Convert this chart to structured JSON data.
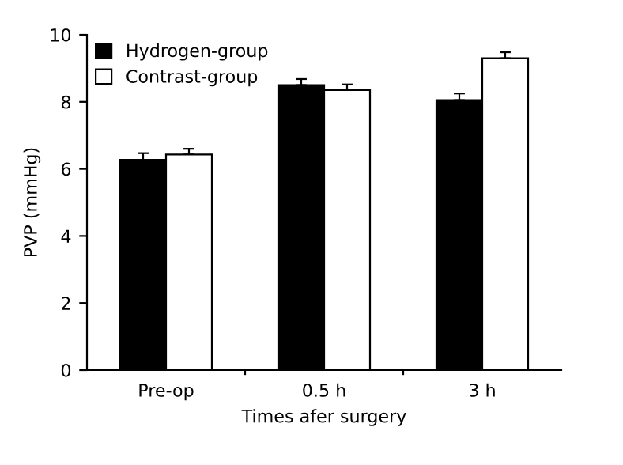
{
  "chart_data": {
    "type": "bar",
    "xlabel": "Times afer surgery",
    "ylabel": "PVP (mmHg)",
    "categories": [
      "Pre-op",
      "0.5 h",
      "3 h"
    ],
    "series": [
      {
        "name": "Hydrogen-group",
        "color": "#000000",
        "values": [
          6.27,
          8.5,
          8.05
        ],
        "errors": [
          [
            6.27,
            6.47
          ],
          [
            8.5,
            8.68
          ],
          [
            8.05,
            8.25
          ]
        ]
      },
      {
        "name": "Contrast-group",
        "color": "#ffffff",
        "values": [
          6.43,
          8.35,
          9.3
        ],
        "errors": [
          [
            6.43,
            6.6
          ],
          [
            8.35,
            8.52
          ],
          [
            9.3,
            9.48
          ]
        ]
      }
    ],
    "ylim": [
      0,
      10
    ],
    "yticks": [
      0,
      2,
      4,
      6,
      8,
      10
    ],
    "grid": false,
    "legend": "top left"
  }
}
